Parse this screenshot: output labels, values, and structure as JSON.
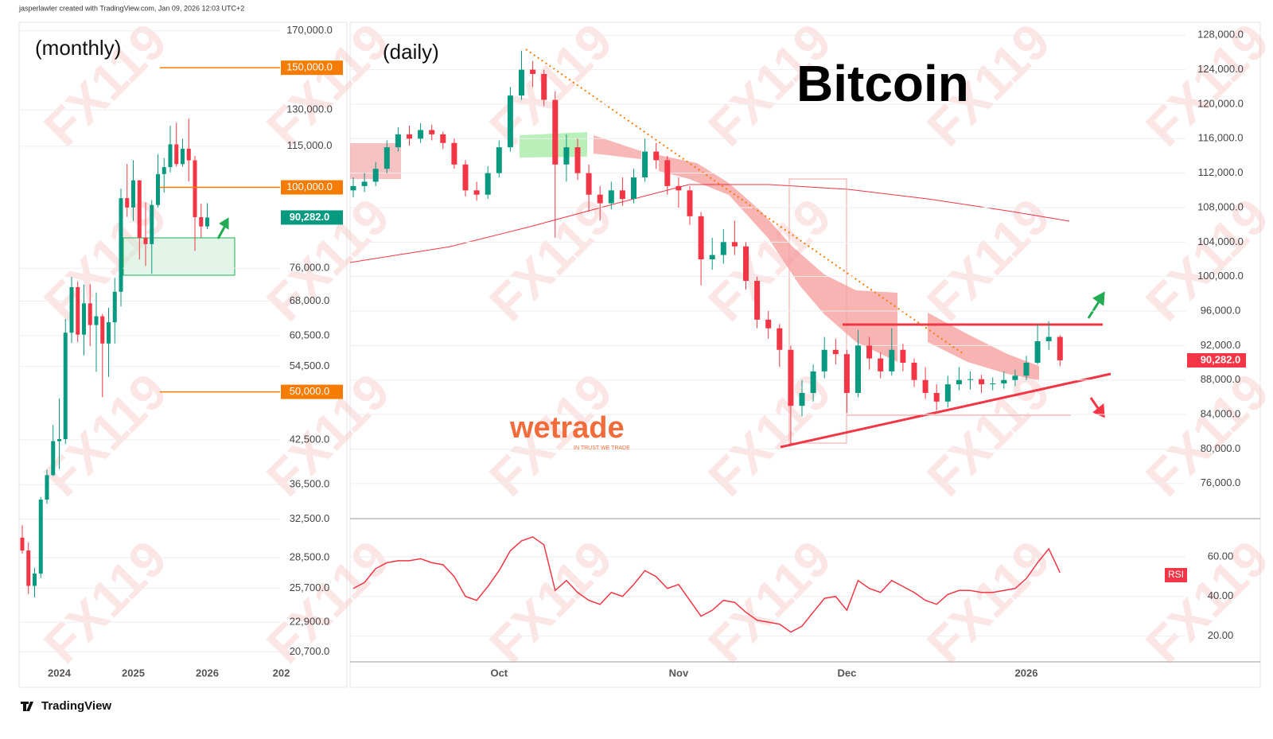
{
  "header": "jasperlawler created with TradingView.com, Jan 09, 2026 12:03 UTC+2",
  "footer": "TradingView",
  "title": "Bitcoin",
  "watermark": "FX119",
  "logo": {
    "name": "wetrade",
    "tagline": "IN TRUST WE TRADE"
  },
  "chart_data": [
    {
      "type": "candlestick",
      "title": "(monthly)",
      "log_scale": true,
      "grid": true,
      "up_color": "#089981",
      "down_color": "#f23645",
      "categories": [
        null,
        null,
        null,
        null,
        null,
        null,
        "2024",
        null,
        null,
        null,
        null,
        null,
        null,
        null,
        null,
        null,
        null,
        null,
        "2025",
        null,
        null,
        null,
        null,
        null,
        null,
        null,
        null,
        null,
        null,
        null,
        "2026",
        null,
        null,
        null,
        null,
        null,
        null,
        null,
        null,
        null,
        null,
        null,
        "202"
      ],
      "candles": [
        [
          30500,
          31800,
          28900,
          29200
        ],
        [
          29200,
          30000,
          25200,
          25900
        ],
        [
          25900,
          27500,
          24900,
          27000
        ],
        [
          27000,
          35000,
          26600,
          34700
        ],
        [
          34700,
          38400,
          34200,
          37700
        ],
        [
          37700,
          44700,
          37600,
          42300
        ],
        [
          42300,
          48900,
          38500,
          42600
        ],
        [
          42600,
          64000,
          41900,
          61100
        ],
        [
          61100,
          73800,
          59000,
          71300
        ],
        [
          71300,
          72700,
          59200,
          60700
        ],
        [
          60700,
          71900,
          56600,
          67500
        ],
        [
          67500,
          72000,
          58400,
          62700
        ],
        [
          62700,
          70000,
          53500,
          64600
        ],
        [
          64600,
          65100,
          49100,
          58900
        ],
        [
          58900,
          66500,
          52600,
          63300
        ],
        [
          63300,
          73600,
          58900,
          70200
        ],
        [
          70200,
          99600,
          66800,
          96400
        ],
        [
          96400,
          108300,
          90500,
          93400
        ],
        [
          93400,
          109600,
          89200,
          102400
        ],
        [
          102400,
          102500,
          78300,
          84300
        ],
        [
          84300,
          95000,
          76600,
          82500
        ],
        [
          82500,
          95800,
          74600,
          94200
        ],
        [
          94200,
          111900,
          93400,
          104600
        ],
        [
          104600,
          110500,
          98200,
          107100
        ],
        [
          107100,
          123200,
          105200,
          115700
        ],
        [
          115700,
          124500,
          107300,
          108200
        ],
        [
          108200,
          117900,
          107300,
          114000
        ],
        [
          114000,
          126200,
          102000,
          109600
        ],
        [
          109600,
          111200,
          80600,
          90400
        ],
        [
          90400,
          94600,
          84400,
          87600
        ],
        [
          87600,
          94800,
          86800,
          90282
        ],
        null,
        null,
        null,
        null,
        null,
        null,
        null,
        null,
        null,
        null,
        null,
        null
      ],
      "ylim": [
        19700,
        175000
      ],
      "yticks": [
        {
          "value": 170000,
          "label": "170,000.0"
        },
        {
          "value": 130000,
          "label": "130,000.0"
        },
        {
          "value": 115000,
          "label": "115,000.0"
        },
        {
          "value": 76000,
          "label": "76,000.0"
        },
        {
          "value": 68000,
          "label": "68,000.0"
        },
        {
          "value": 60500,
          "label": "60,500.0"
        },
        {
          "value": 54500,
          "label": "54,500.0"
        },
        {
          "value": 42500,
          "label": "42,500.0"
        },
        {
          "value": 36500,
          "label": "36,500.0"
        },
        {
          "value": 32500,
          "label": "32,500.0"
        },
        {
          "value": 28500,
          "label": "28,500.0"
        },
        {
          "value": 25700,
          "label": "25,700.0"
        },
        {
          "value": 22900,
          "label": "22,900.0"
        },
        {
          "value": 20700,
          "label": "20,700.0"
        }
      ],
      "levels": [
        {
          "value": 150000,
          "label": "150,000.0"
        },
        {
          "value": 100000,
          "label": "100,000.0"
        },
        {
          "value": 50000,
          "label": "50,000.0"
        }
      ],
      "level_color": "#f57c00",
      "last_price": {
        "value": 90282,
        "label": "90,282.0",
        "color": "#089981"
      }
    },
    {
      "type": "candlestick",
      "title": "(daily)",
      "log_scale": false,
      "grid": true,
      "up_color": "#089981",
      "down_color": "#f23645",
      "categories": [
        null,
        null,
        null,
        null,
        null,
        null,
        null,
        null,
        null,
        null,
        null,
        null,
        null,
        "Oct",
        null,
        null,
        null,
        null,
        null,
        null,
        null,
        null,
        null,
        null,
        null,
        null,
        null,
        null,
        null,
        "Nov",
        null,
        null,
        null,
        null,
        null,
        null,
        null,
        null,
        null,
        null,
        null,
        null,
        null,
        null,
        "Dec",
        null,
        null,
        null,
        null,
        null,
        null,
        null,
        null,
        null,
        null,
        null,
        null,
        null,
        null,
        null,
        "2026",
        null,
        null,
        null
      ],
      "candles": [
        [
          110000,
          111500,
          109200,
          110500
        ],
        [
          110500,
          112000,
          109800,
          111000
        ],
        [
          111000,
          113300,
          110500,
          112500
        ],
        [
          112500,
          115800,
          112000,
          115000
        ],
        [
          115000,
          117300,
          114500,
          116500
        ],
        [
          116500,
          117500,
          115200,
          116000
        ],
        [
          116000,
          117800,
          115500,
          117000
        ],
        [
          117000,
          117600,
          115800,
          116500
        ],
        [
          116500,
          116800,
          114800,
          115500
        ],
        [
          115500,
          116000,
          112500,
          113000
        ],
        [
          113000,
          113500,
          109300,
          110000
        ],
        [
          110000,
          111000,
          108800,
          109500
        ],
        [
          109500,
          112800,
          109000,
          112000
        ],
        [
          112000,
          115800,
          111500,
          115000
        ],
        [
          115000,
          122000,
          114500,
          121000
        ],
        [
          121000,
          126200,
          120500,
          124000
        ],
        [
          124000,
          125000,
          122000,
          123500
        ],
        [
          123500,
          124000,
          119800,
          120500
        ],
        [
          120500,
          121500,
          104500,
          113000
        ],
        [
          113000,
          116500,
          111000,
          115000
        ],
        [
          115000,
          116000,
          111200,
          112000
        ],
        [
          112000,
          113000,
          107500,
          109500
        ],
        [
          109500,
          110500,
          106500,
          108500
        ],
        [
          108500,
          111000,
          107800,
          110000
        ],
        [
          110000,
          111500,
          108200,
          109000
        ],
        [
          109000,
          112500,
          108500,
          111500
        ],
        [
          111500,
          116000,
          111000,
          114500
        ],
        [
          114500,
          115500,
          112500,
          113500
        ],
        [
          113500,
          114000,
          109500,
          110500
        ],
        [
          110500,
          111500,
          108000,
          110000
        ],
        [
          110000,
          110500,
          106000,
          107000
        ],
        [
          107000,
          107500,
          99000,
          102000
        ],
        [
          102000,
          104500,
          100800,
          102500
        ],
        [
          102500,
          105500,
          101500,
          104000
        ],
        [
          104000,
          106500,
          102500,
          103500
        ],
        [
          103500,
          104000,
          98500,
          99500
        ],
        [
          99500,
          100000,
          94000,
          95000
        ],
        [
          95000,
          96000,
          92800,
          94000
        ],
        [
          94000,
          94500,
          89500,
          91500
        ],
        [
          91500,
          92000,
          80600,
          85000
        ],
        [
          85000,
          88000,
          83800,
          86500
        ],
        [
          86500,
          89800,
          85500,
          89000
        ],
        [
          89000,
          93000,
          88200,
          91500
        ],
        [
          91500,
          92800,
          89800,
          91000
        ],
        [
          91000,
          91500,
          84200,
          86500
        ],
        [
          86500,
          93800,
          86000,
          92000
        ],
        [
          92000,
          93000,
          89200,
          90500
        ],
        [
          90500,
          91200,
          88200,
          89000
        ],
        [
          89000,
          94000,
          88500,
          91500
        ],
        [
          91500,
          92200,
          89000,
          90000
        ],
        [
          90000,
          90500,
          87200,
          88000
        ],
        [
          88000,
          89500,
          85800,
          86500
        ],
        [
          86500,
          87500,
          84500,
          85500
        ],
        [
          85500,
          88500,
          84800,
          87500
        ],
        [
          87500,
          89500,
          86800,
          88000
        ],
        [
          88000,
          89000,
          86900,
          88100
        ],
        [
          88100,
          88600,
          86500,
          87500
        ],
        [
          87500,
          88300,
          86800,
          87600
        ],
        [
          87600,
          89000,
          87000,
          88000
        ],
        [
          88000,
          89200,
          87300,
          88500
        ],
        [
          88500,
          90800,
          88000,
          90000
        ],
        [
          90000,
          94500,
          89800,
          92500
        ],
        [
          92500,
          94800,
          91500,
          93000
        ],
        [
          93000,
          93200,
          89600,
          90282
        ]
      ],
      "ylim": [
        72100,
        129500
      ],
      "yticks": [
        {
          "value": 128000,
          "label": "128,000.0"
        },
        {
          "value": 124000,
          "label": "124,000.0"
        },
        {
          "value": 120000,
          "label": "120,000.0"
        },
        {
          "value": 116000,
          "label": "116,000.0"
        },
        {
          "value": 112000,
          "label": "112,000.0"
        },
        {
          "value": 108000,
          "label": "108,000.0"
        },
        {
          "value": 104000,
          "label": "104,000.0"
        },
        {
          "value": 100000,
          "label": "100,000.0"
        },
        {
          "value": 96000,
          "label": "96,000.0"
        },
        {
          "value": 92000,
          "label": "92,000.0"
        },
        {
          "value": 88000,
          "label": "88,000.0"
        },
        {
          "value": 84000,
          "label": "84,000.0"
        },
        {
          "value": 80000,
          "label": "80,000.0"
        },
        {
          "value": 76000,
          "label": "76,000.0"
        }
      ],
      "last_price": {
        "value": 90282,
        "label": "90,282.0",
        "color": "#f23645"
      }
    },
    {
      "type": "line",
      "title": "RSI",
      "color": "#f23645",
      "grid": true,
      "values": [
        44,
        47,
        54,
        57,
        58,
        58,
        59,
        57,
        56,
        50,
        40,
        38,
        45,
        53,
        63,
        68,
        70,
        66,
        43,
        48,
        42,
        38,
        36,
        42,
        40,
        46,
        53,
        50,
        44,
        46,
        38,
        30,
        33,
        38,
        37,
        32,
        28,
        27,
        26,
        22,
        25,
        32,
        39,
        40,
        33,
        48,
        44,
        42,
        48,
        45,
        42,
        38,
        36,
        41,
        43,
        43,
        42,
        42,
        43,
        44,
        49,
        57,
        64,
        52
      ],
      "ylim": [
        7,
        78
      ],
      "yticks": [
        {
          "value": 60,
          "label": "60.00"
        },
        {
          "value": 40,
          "label": "40.00"
        },
        {
          "value": 20,
          "label": "20.00"
        }
      ]
    }
  ]
}
